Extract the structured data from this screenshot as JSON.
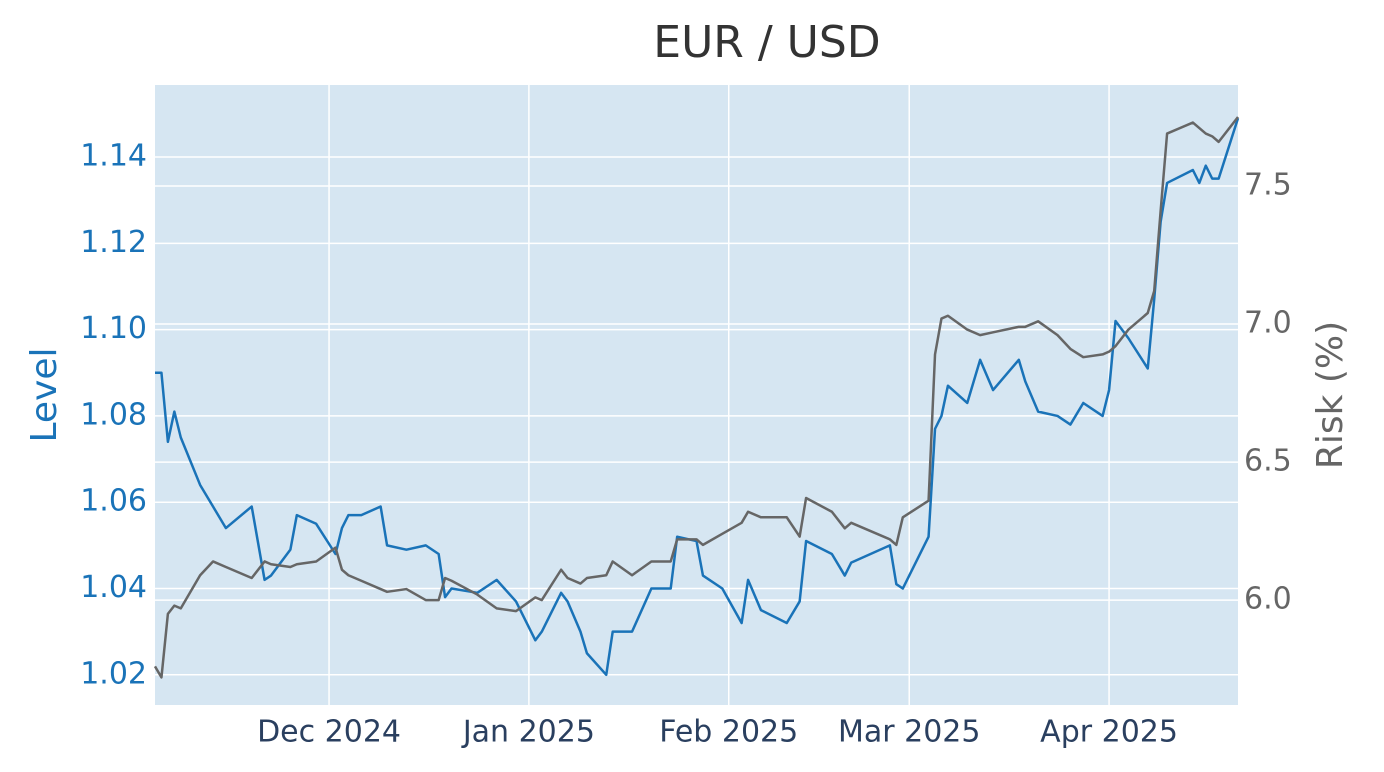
{
  "chart_data": {
    "type": "line",
    "title": "EUR / USD",
    "ylabel": "Level",
    "y2label": "Risk (%)",
    "x": [
      "2024-11-04",
      "2024-11-05",
      "2024-11-06",
      "2024-11-07",
      "2024-11-08",
      "2024-11-11",
      "2024-11-13",
      "2024-11-15",
      "2024-11-19",
      "2024-11-21",
      "2024-11-22",
      "2024-11-25",
      "2024-11-26",
      "2024-11-29",
      "2024-12-02",
      "2024-12-03",
      "2024-12-04",
      "2024-12-06",
      "2024-12-09",
      "2024-12-10",
      "2024-12-13",
      "2024-12-16",
      "2024-12-18",
      "2024-12-19",
      "2024-12-20",
      "2024-12-24",
      "2024-12-27",
      "2024-12-30",
      "2025-01-02",
      "2025-01-03",
      "2025-01-06",
      "2025-01-07",
      "2025-01-09",
      "2025-01-10",
      "2025-01-13",
      "2025-01-14",
      "2025-01-17",
      "2025-01-20",
      "2025-01-23",
      "2025-01-24",
      "2025-01-27",
      "2025-01-28",
      "2025-01-31",
      "2025-02-03",
      "2025-02-04",
      "2025-02-06",
      "2025-02-10",
      "2025-02-12",
      "2025-02-13",
      "2025-02-17",
      "2025-02-19",
      "2025-02-20",
      "2025-02-26",
      "2025-02-27",
      "2025-02-28",
      "2025-03-04",
      "2025-03-05",
      "2025-03-06",
      "2025-03-07",
      "2025-03-10",
      "2025-03-12",
      "2025-03-14",
      "2025-03-18",
      "2025-03-19",
      "2025-03-21",
      "2025-03-24",
      "2025-03-26",
      "2025-03-28",
      "2025-03-31",
      "2025-04-01",
      "2025-04-02",
      "2025-04-04",
      "2025-04-07",
      "2025-04-08",
      "2025-04-09",
      "2025-04-10",
      "2025-04-14",
      "2025-04-15",
      "2025-04-16",
      "2025-04-17",
      "2025-04-18",
      "2025-04-21"
    ],
    "series": [
      {
        "color": "#1a73b8",
        "axis": "y",
        "values": [
          1.09,
          1.09,
          1.074,
          1.081,
          1.075,
          1.064,
          1.059,
          1.054,
          1.059,
          1.042,
          1.043,
          1.049,
          1.057,
          1.055,
          1.048,
          1.054,
          1.057,
          1.057,
          1.059,
          1.05,
          1.049,
          1.05,
          1.048,
          1.038,
          1.04,
          1.039,
          1.042,
          1.037,
          1.028,
          1.03,
          1.039,
          1.037,
          1.03,
          1.025,
          1.02,
          1.03,
          1.03,
          1.04,
          1.04,
          1.052,
          1.051,
          1.043,
          1.04,
          1.032,
          1.042,
          1.035,
          1.032,
          1.037,
          1.051,
          1.048,
          1.043,
          1.046,
          1.05,
          1.041,
          1.04,
          1.052,
          1.077,
          1.08,
          1.087,
          1.083,
          1.093,
          1.086,
          1.093,
          1.088,
          1.081,
          1.08,
          1.078,
          1.083,
          1.08,
          1.086,
          1.102,
          1.098,
          1.091,
          1.107,
          1.125,
          1.134,
          1.137,
          1.134,
          1.138,
          1.135,
          1.135,
          1.149
        ]
      },
      {
        "color": "#666666",
        "axis": "y2",
        "values": [
          5.76,
          5.72,
          5.95,
          5.98,
          5.97,
          6.09,
          6.14,
          6.12,
          6.08,
          6.14,
          6.13,
          6.12,
          6.13,
          6.14,
          6.19,
          6.11,
          6.09,
          6.07,
          6.04,
          6.03,
          6.04,
          6.0,
          6.0,
          6.08,
          6.07,
          6.02,
          5.97,
          5.96,
          6.01,
          6.0,
          6.11,
          6.08,
          6.06,
          6.08,
          6.09,
          6.14,
          6.09,
          6.14,
          6.14,
          6.22,
          6.22,
          6.2,
          6.24,
          6.28,
          6.32,
          6.3,
          6.3,
          6.23,
          6.37,
          6.32,
          6.26,
          6.28,
          6.22,
          6.2,
          6.3,
          6.36,
          6.89,
          7.02,
          7.03,
          6.98,
          6.96,
          6.97,
          6.99,
          6.99,
          7.01,
          6.96,
          6.91,
          6.88,
          6.89,
          6.9,
          6.92,
          6.98,
          7.04,
          7.12,
          7.41,
          7.69,
          7.73,
          7.71,
          7.69,
          7.68,
          7.66,
          7.75
        ]
      }
    ],
    "xlim": [
      "2024-11-04",
      "2025-04-21"
    ],
    "xticks": [
      {
        "value": "2024-12-01",
        "label": "Dec 2024"
      },
      {
        "value": "2025-01-01",
        "label": "Jan 2025"
      },
      {
        "value": "2025-02-01",
        "label": "Feb 2025"
      },
      {
        "value": "2025-03-01",
        "label": "Mar 2025"
      },
      {
        "value": "2025-04-01",
        "label": "Apr 2025"
      }
    ],
    "ylim": [
      1.013,
      1.1567
    ],
    "yticks": [
      1.02,
      1.04,
      1.06,
      1.08,
      {
        "value": 1.1,
        "label": "1.10"
      },
      1.12,
      1.14
    ],
    "y2lim": [
      5.62,
      7.866
    ],
    "y2ticks": [
      {
        "value": 6,
        "label": "6.0"
      },
      6.5,
      {
        "value": 7,
        "label": "7.0"
      },
      7.5
    ],
    "grid": true
  }
}
